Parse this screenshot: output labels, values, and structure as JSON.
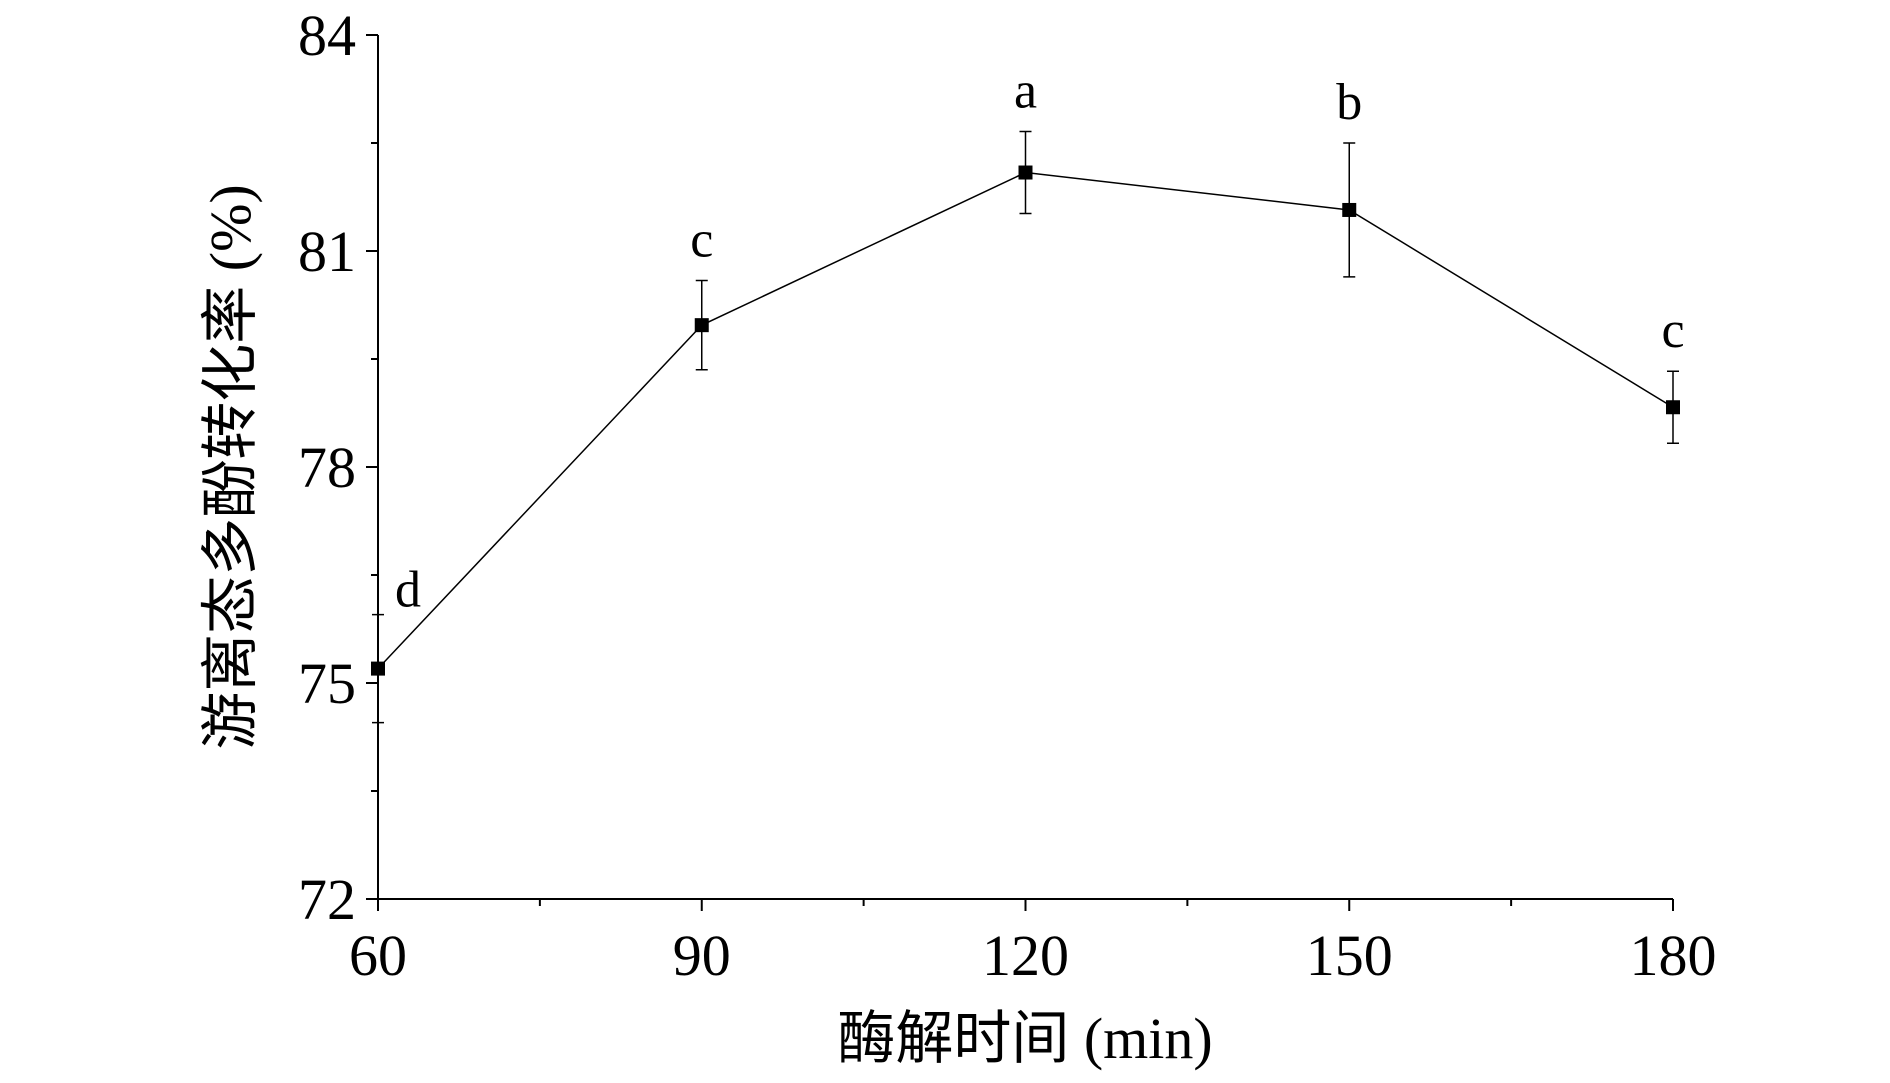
{
  "chart_data": {
    "type": "line",
    "x_label": "酶解时间 (min)",
    "y_label": "游离态多酚转化率 (%)",
    "x": [
      60,
      90,
      120,
      150,
      180
    ],
    "series": [
      {
        "color": "#000000",
        "values": [
          75.2,
          79.97,
          82.09,
          81.57,
          78.83
        ],
        "errors": [
          0.75,
          0.62,
          0.57,
          0.93,
          0.5
        ],
        "labels": [
          "d",
          "c",
          "a",
          "b",
          "c"
        ]
      }
    ],
    "xlim": [
      60,
      180
    ],
    "xticks": [
      60,
      90,
      120,
      150,
      180
    ],
    "ylim": [
      72,
      84
    ],
    "yticks": [
      72,
      75,
      78,
      81,
      84
    ]
  }
}
